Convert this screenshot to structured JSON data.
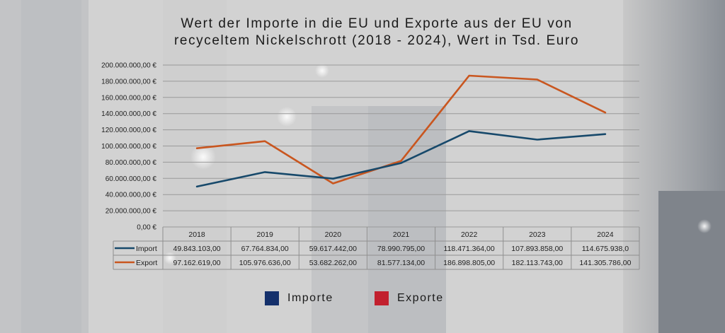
{
  "title_line1": "Wert der Importe in die EU und Exporte aus der EU von",
  "title_line2": "recyceltem Nickelschrott (2018 - 2024), Wert in Tsd. Euro",
  "colors": {
    "import": "#17496b",
    "export": "#c9561f",
    "legend_import": "#14306b",
    "legend_export": "#c2202e"
  },
  "legend": {
    "import": "Importe",
    "export": "Exporte"
  },
  "chart_data": {
    "type": "line",
    "title": "Wert der Importe in die EU und Exporte aus der EU von recyceltem Nickelschrott (2018 - 2024), Wert in Tsd. Euro",
    "categories": [
      "2018",
      "2019",
      "2020",
      "2021",
      "2022",
      "2023",
      "2024"
    ],
    "series": [
      {
        "name": "Import",
        "values": [
          49843103,
          67764834,
          59617442,
          78990795,
          118471364,
          107893858,
          114675938
        ],
        "labels": [
          "49.843.103,00",
          "67.764.834,00",
          "59.617.442,00",
          "78.990.795,00",
          "118.471.364,00",
          "107.893.858,00",
          "114.675.938,0"
        ]
      },
      {
        "name": "Export",
        "values": [
          97162619,
          105976636,
          53682262,
          81577134,
          186898805,
          182113743,
          141305786
        ],
        "labels": [
          "97.162.619,00",
          "105.976.636,00",
          "53.682.262,00",
          "81.577.134,00",
          "186.898.805,00",
          "182.113.743,00",
          "141.305.786,00"
        ]
      }
    ],
    "yticks": [
      "0,00 €",
      "20.000.000,00 €",
      "40.000.000,00 €",
      "60.000.000,00 €",
      "80.000.000,00 €",
      "100.000.000,00 €",
      "120.000.000,00 €",
      "140.000.000,00 €",
      "160.000.000,00 €",
      "180.000.000,00 €",
      "200.000.000,00 €"
    ],
    "ylim": [
      0,
      200000000
    ],
    "grid": true,
    "data_table": true,
    "legend_position": "bottom"
  }
}
